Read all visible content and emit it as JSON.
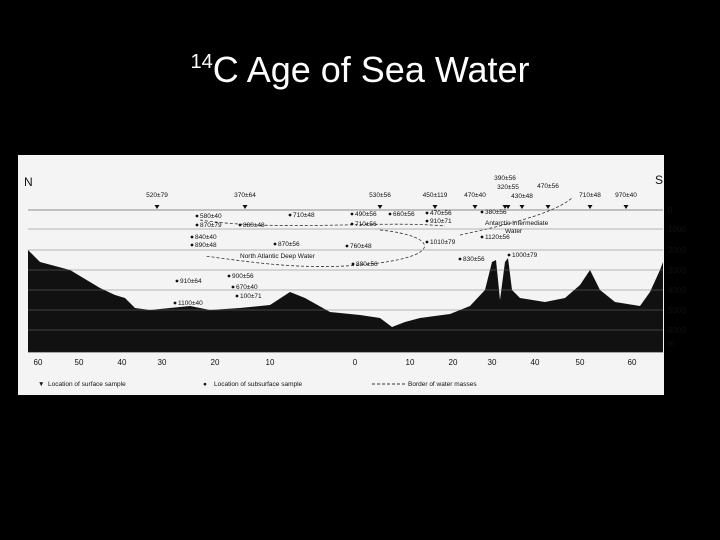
{
  "title": {
    "superscript": "14",
    "text": "C Age of Sea Water"
  },
  "figure": {
    "north": "N",
    "south": "S",
    "surface_samples": [
      "520±79",
      "370±64",
      "530±56",
      "450±119",
      "470±40",
      "390±56",
      "320±55",
      "430±48",
      "470±56",
      "710±48",
      "970±40"
    ],
    "subsurface_samples": [
      "580±40",
      "870±79",
      "880±48",
      "710±48",
      "840±40",
      "890±48",
      "870±56",
      "490±56",
      "660±56",
      "710±56",
      "470±56",
      "910±71",
      "380±56",
      "1120±56",
      "1010±79",
      "760±48",
      "880±56",
      "830±56",
      "1000±79",
      "910±64",
      "900±56",
      "670±40",
      "100±71",
      "1100±40",
      "1000",
      "±56"
    ],
    "water_masses": [
      "North Atlantic Deep Water",
      "Antarctic Intermediate",
      "Water"
    ],
    "depth_labels": [
      "0",
      "1000",
      "2000",
      "3000",
      "4000",
      "5000",
      "6000"
    ],
    "depth_unit": "m",
    "latitude_labels": [
      "60",
      "50",
      "40",
      "30",
      "20",
      "10",
      "0",
      "10",
      "20",
      "30",
      "40",
      "50",
      "60"
    ],
    "legend": [
      "Location of surface sample",
      "Location of subsurface sample",
      "Border of water masses"
    ]
  }
}
